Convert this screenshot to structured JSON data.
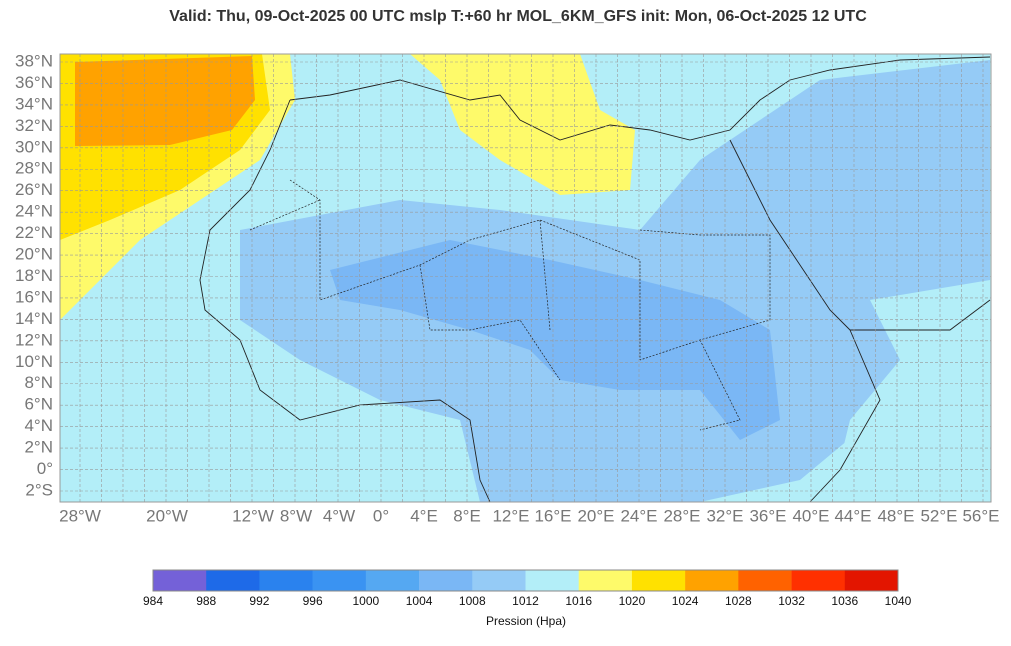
{
  "header": {
    "title": "Valid: Thu, 09-Oct-2025   00 UTC   mslp   T:+60 hr   MOL_6KM_GFS      init: Mon, 06-Oct-2025   12 UTC"
  },
  "map": {
    "lat_labels": [
      "38°N",
      "36°N",
      "34°N",
      "32°N",
      "30°N",
      "28°N",
      "26°N",
      "24°N",
      "22°N",
      "20°N",
      "18°N",
      "16°N",
      "14°N",
      "12°N",
      "10°N",
      "8°N",
      "6°N",
      "4°N",
      "2°N",
      "0°",
      "2°S"
    ],
    "lon_labels": [
      "28°W",
      "20°W",
      "12°W",
      "8°W",
      "4°W",
      "0°",
      "4°E",
      "8°E",
      "12°E",
      "16°E",
      "20°E",
      "24°E",
      "28°E",
      "32°E",
      "36°E",
      "40°E",
      "44°E",
      "48°E",
      "52°E",
      "56°E"
    ]
  },
  "colorbar": {
    "colors": [
      "#7461d8",
      "#1e6ae8",
      "#2a82ee",
      "#3a93f2",
      "#55a8f2",
      "#7ab7f5",
      "#95cbf6",
      "#b3eef8",
      "#fefa6a",
      "#ffe100",
      "#ffa200",
      "#ff6200",
      "#ff3000",
      "#e31500"
    ],
    "ticks": [
      984,
      988,
      992,
      996,
      1000,
      1004,
      1008,
      1012,
      1016,
      1020,
      1024,
      1028,
      1032,
      1036,
      1040
    ],
    "label": "Pression (Hpa)"
  }
}
